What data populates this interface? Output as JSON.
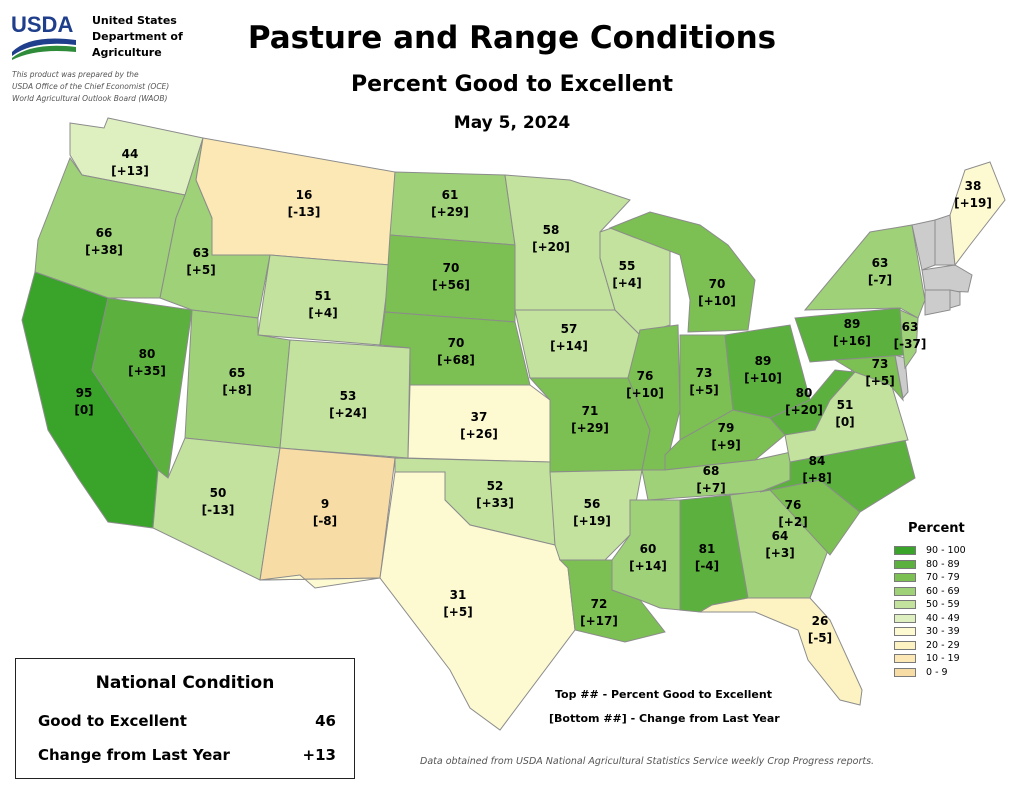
{
  "header": {
    "logo_text": "USDA",
    "agency": "United States\nDepartment of\nAgriculture",
    "prepared_note": "This product was prepared by the\nUSDA Office of the Chief Economist (OCE)\nWorld Agricultural Outlook Board (WAOB)",
    "title": "Pasture and Range Conditions",
    "subtitle": "Percent Good to Excellent",
    "date": "May 5, 2024"
  },
  "colors": {
    "no_data": "#cccccc",
    "water_line": "#8c8c8c"
  },
  "legend": {
    "title": "Percent",
    "bins": [
      {
        "label": "90 - 100",
        "color": "#3aa32a"
      },
      {
        "label": "80 - 89",
        "color": "#5cb03e"
      },
      {
        "label": "70 - 79",
        "color": "#7cbf52"
      },
      {
        "label": "60 - 69",
        "color": "#9fd178"
      },
      {
        "label": "50 - 59",
        "color": "#c2e29e"
      },
      {
        "label": "40 - 49",
        "color": "#dff0c0"
      },
      {
        "label": "30 - 39",
        "color": "#fdfad2"
      },
      {
        "label": "20 - 29",
        "color": "#fdf3c2"
      },
      {
        "label": "10 - 19",
        "color": "#fbe8b4"
      },
      {
        "label": "0 - 9",
        "color": "#f7dca6"
      }
    ]
  },
  "states": [
    {
      "id": "WA",
      "value": 44,
      "change": "[+13]"
    },
    {
      "id": "OR",
      "value": 66,
      "change": "[+38]"
    },
    {
      "id": "CA",
      "value": 95,
      "change": "[0]"
    },
    {
      "id": "NV",
      "value": 80,
      "change": "[+35]"
    },
    {
      "id": "ID",
      "value": 63,
      "change": "[+5]"
    },
    {
      "id": "MT",
      "value": 16,
      "change": "[-13]"
    },
    {
      "id": "WY",
      "value": 51,
      "change": "[+4]"
    },
    {
      "id": "UT",
      "value": 65,
      "change": "[+8]"
    },
    {
      "id": "CO",
      "value": 53,
      "change": "[+24]"
    },
    {
      "id": "AZ",
      "value": 50,
      "change": "[-13]"
    },
    {
      "id": "NM",
      "value": 9,
      "change": "[-8]"
    },
    {
      "id": "ND",
      "value": 61,
      "change": "[+29]"
    },
    {
      "id": "SD",
      "value": 70,
      "change": "[+56]"
    },
    {
      "id": "NE",
      "value": 70,
      "change": "[+68]"
    },
    {
      "id": "KS",
      "value": 37,
      "change": "[+26]"
    },
    {
      "id": "OK",
      "value": 52,
      "change": "[+33]"
    },
    {
      "id": "TX",
      "value": 31,
      "change": "[+5]"
    },
    {
      "id": "MN",
      "value": 58,
      "change": "[+20]"
    },
    {
      "id": "IA",
      "value": 57,
      "change": "[+14]"
    },
    {
      "id": "MO",
      "value": 71,
      "change": "[+29]"
    },
    {
      "id": "AR",
      "value": 56,
      "change": "[+19]"
    },
    {
      "id": "LA",
      "value": 72,
      "change": "[+17]"
    },
    {
      "id": "WI",
      "value": 55,
      "change": "[+4]"
    },
    {
      "id": "IL",
      "value": 76,
      "change": "[+10]"
    },
    {
      "id": "MI",
      "value": 70,
      "change": "[+10]"
    },
    {
      "id": "IN",
      "value": 73,
      "change": "[+5]"
    },
    {
      "id": "OH",
      "value": 89,
      "change": "[+10]"
    },
    {
      "id": "KY",
      "value": 79,
      "change": "[+9]"
    },
    {
      "id": "TN",
      "value": 68,
      "change": "[+7]"
    },
    {
      "id": "MS",
      "value": 60,
      "change": "[+14]"
    },
    {
      "id": "AL",
      "value": 81,
      "change": "[-4]"
    },
    {
      "id": "GA",
      "value": 64,
      "change": "[+3]"
    },
    {
      "id": "FL",
      "value": 26,
      "change": "[-5]"
    },
    {
      "id": "SC",
      "value": 76,
      "change": "[+2]"
    },
    {
      "id": "NC",
      "value": 84,
      "change": "[+8]"
    },
    {
      "id": "VA",
      "value": 51,
      "change": "[0]"
    },
    {
      "id": "WV",
      "value": 80,
      "change": "[+20]"
    },
    {
      "id": "MD",
      "value": 73,
      "change": "[+5]"
    },
    {
      "id": "PA",
      "value": 89,
      "change": "[+16]"
    },
    {
      "id": "NJ",
      "value": 63,
      "change": "[-37]"
    },
    {
      "id": "NY",
      "value": 63,
      "change": "[-7]"
    },
    {
      "id": "ME",
      "value": 38,
      "change": "[+19]"
    },
    {
      "id": "VT",
      "value": null,
      "change": null
    },
    {
      "id": "NH",
      "value": null,
      "change": null
    },
    {
      "id": "MA",
      "value": null,
      "change": null
    },
    {
      "id": "CT",
      "value": null,
      "change": null
    },
    {
      "id": "RI",
      "value": null,
      "change": null
    },
    {
      "id": "DE",
      "value": null,
      "change": null
    }
  ],
  "national": {
    "title": "National Condition",
    "good_label": "Good to Excellent",
    "good_value": "46",
    "change_label": "Change from Last Year",
    "change_value": "+13"
  },
  "key": {
    "top": "Top ## - Percent Good to Excellent",
    "bottom": "[Bottom ##] - Change from Last Year"
  },
  "source_note": "Data obtained from USDA National Agricultural Statistics Service weekly Crop Progress reports."
}
